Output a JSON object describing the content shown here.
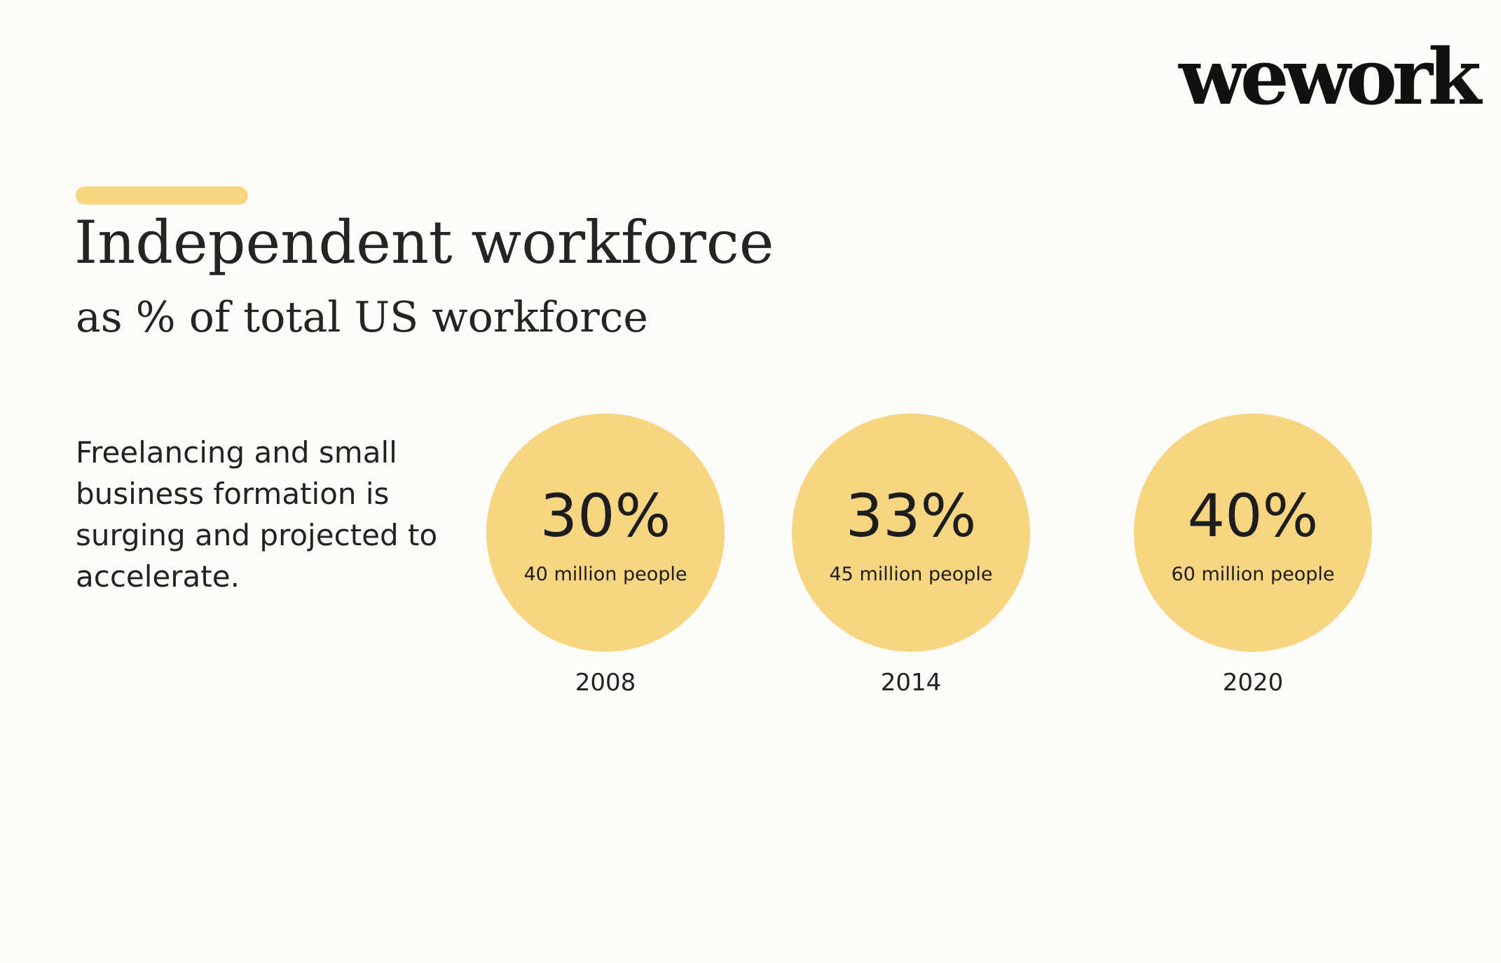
{
  "logo": "wework",
  "title": "Independent workforce",
  "subtitle": "as % of total US workforce",
  "description": "Freelancing and small business formation is surging and projected to accelerate.",
  "stats": [
    {
      "percent": "30%",
      "people": "40 million people",
      "year": "2008"
    },
    {
      "percent": "33%",
      "people": "45 million people",
      "year": "2014"
    },
    {
      "percent": "40%",
      "people": "60 million people",
      "year": "2020"
    }
  ],
  "colors": {
    "accent": "#f7d581",
    "background": "#fdfcf8",
    "text": "#1d1d1d"
  }
}
